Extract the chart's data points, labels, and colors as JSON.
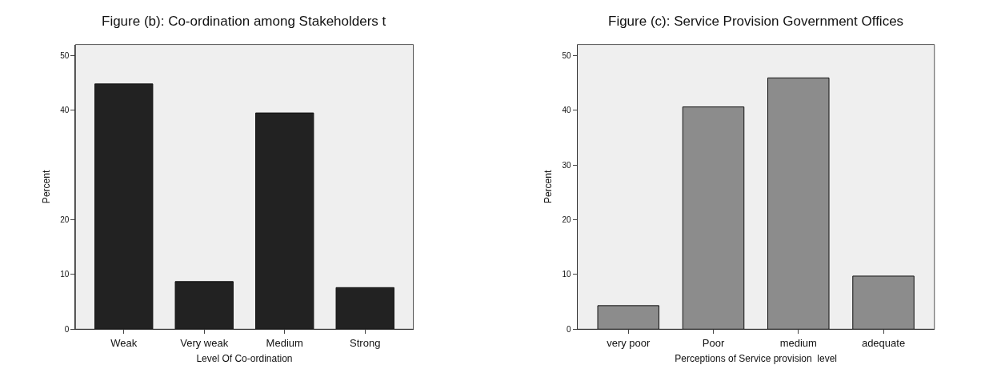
{
  "chart_data": [
    {
      "type": "bar",
      "title": "Figure (b): Co-ordination among Stakeholders t",
      "xlabel": "Level Of Co-ordination",
      "ylabel": "Percent",
      "categories": [
        "Weak",
        "Very weak",
        "Medium",
        "Strong"
      ],
      "values": [
        44.8,
        8.7,
        39.5,
        7.6
      ],
      "color": "#222222",
      "ylim": [
        0,
        52
      ],
      "yticks": [
        0,
        10,
        20,
        40,
        50
      ],
      "grid": false
    },
    {
      "type": "bar",
      "title": "Figure (c): Service Provision Government Offices",
      "xlabel": "Perceptions of Service provision  level",
      "ylabel": "Percent",
      "categories": [
        "very poor",
        "Poor",
        "medium",
        "adequate"
      ],
      "values": [
        4.3,
        40.6,
        45.9,
        9.7
      ],
      "color": "#8c8c8c",
      "ylim": [
        0,
        52
      ],
      "yticks": [
        0,
        10,
        20,
        30,
        40,
        50
      ],
      "grid": false
    }
  ]
}
